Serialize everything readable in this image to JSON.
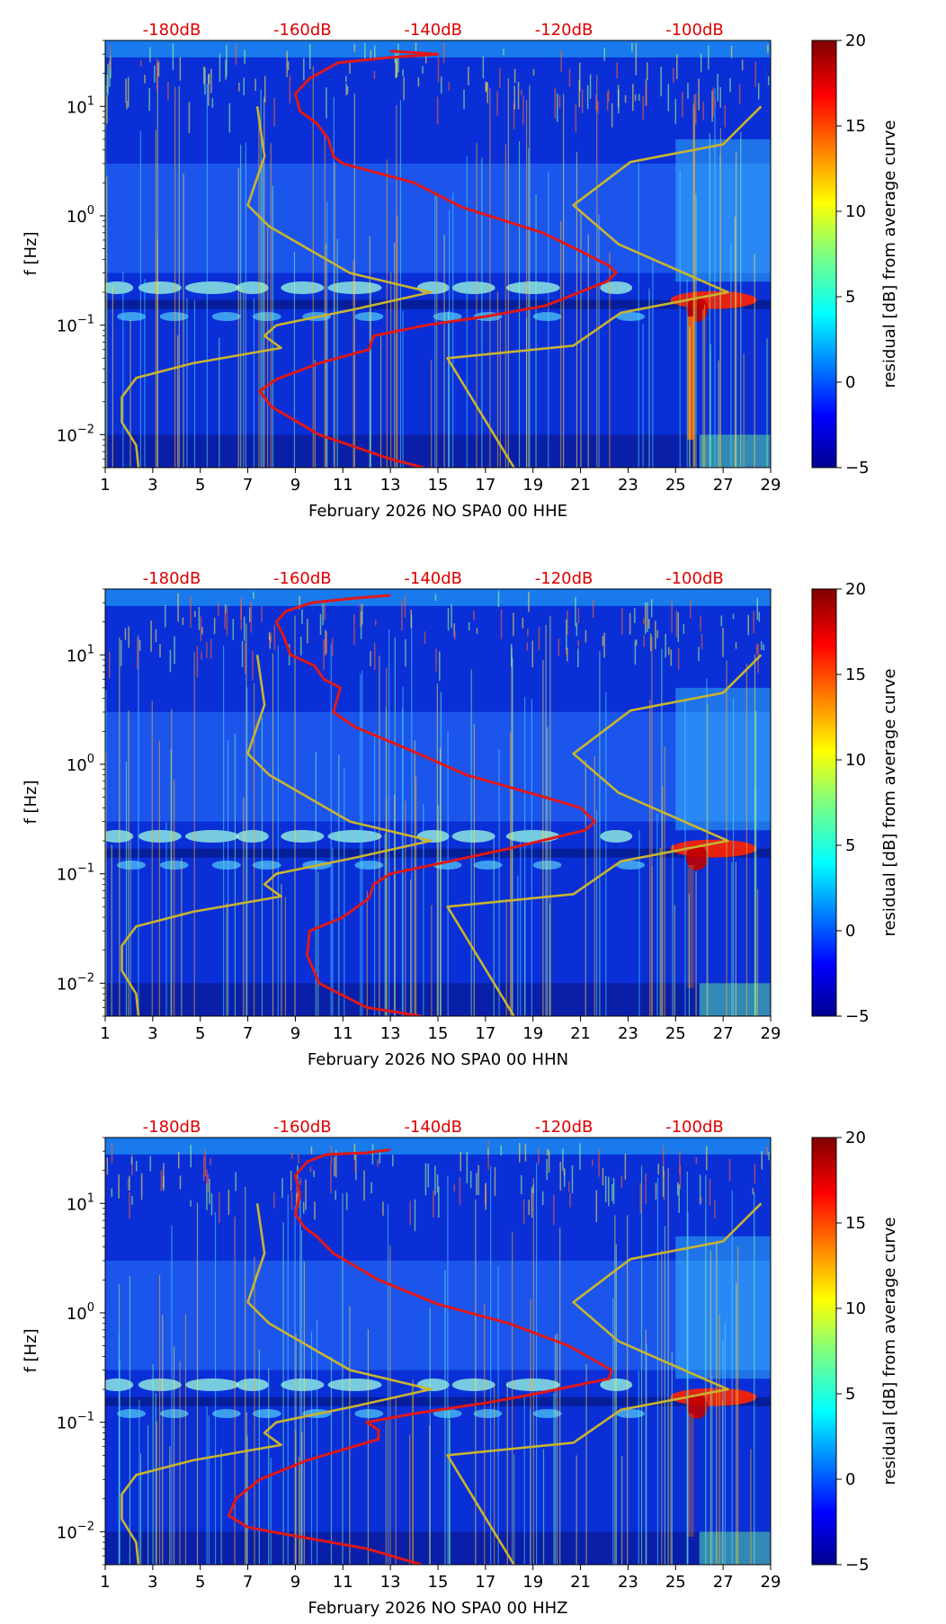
{
  "figure": {
    "colorbar": {
      "label": "residual [dB] from average curve",
      "range": [
        -5,
        20
      ],
      "tick_labels": [
        "20",
        "15",
        "10",
        "5",
        "0",
        "−5"
      ],
      "tick_values": [
        20,
        15,
        10,
        5,
        0,
        -5
      ]
    },
    "top_axis": {
      "labels": [
        "-180dB",
        "-160dB",
        "-140dB",
        "-120dB",
        "-100dB"
      ],
      "positions_day": [
        3.8,
        9.3,
        14.8,
        20.3,
        25.8
      ],
      "color": "#e00000"
    },
    "x_ticks": [
      "1",
      "3",
      "5",
      "7",
      "9",
      "11",
      "13",
      "15",
      "17",
      "19",
      "21",
      "23",
      "25",
      "27",
      "29"
    ],
    "ylabel": "f [Hz]",
    "y_ticks": [
      {
        "base": "10",
        "exp": "1",
        "value": 10
      },
      {
        "base": "10",
        "exp": "0",
        "value": 1
      },
      {
        "base": "10",
        "exp": "−1",
        "value": 0.1
      },
      {
        "base": "10",
        "exp": "−2",
        "value": 0.01
      }
    ],
    "colors": {
      "spectrogram_bg": "#0a2fd6",
      "noise_model": "#c8b430",
      "psd": "#e01818"
    }
  },
  "chart_data": [
    {
      "type": "heatmap",
      "title": "",
      "xlabel": "February 2026 NO SPA0 00 HHE",
      "ylabel": "f [Hz]",
      "xlim": [
        1,
        29
      ],
      "ylim": [
        0.005,
        40
      ],
      "yscale": "log",
      "series": [
        {
          "name": "noise model low (yellow)",
          "day": [
            2.4,
            2.3,
            1.7,
            1.7,
            2.3,
            4.7,
            8.4,
            7.7,
            8.2,
            11.5,
            14.7,
            11.3,
            7.9,
            7.0,
            7.7,
            7.4
          ],
          "freq": [
            0.005,
            0.008,
            0.013,
            0.022,
            0.033,
            0.045,
            0.062,
            0.08,
            0.1,
            0.14,
            0.2,
            0.3,
            0.8,
            1.25,
            3.5,
            10
          ]
        },
        {
          "name": "noise model high (yellow)",
          "day": [
            18.2,
            15.4,
            20.7,
            22.7,
            27.2,
            22.6,
            20.7,
            23.1,
            27.0,
            28.6
          ],
          "freq": [
            0.005,
            0.05,
            0.065,
            0.13,
            0.2,
            0.55,
            1.25,
            3.1,
            4.5,
            10
          ]
        },
        {
          "name": "median PSD (red)",
          "day": [
            14.4,
            13,
            10,
            8,
            7.5,
            8.2,
            10,
            12.1,
            12.3,
            14.5,
            17,
            19.5,
            22.1,
            22.5,
            22.2,
            20.8,
            19.4,
            16,
            14,
            11,
            10.6,
            10.4,
            9.9,
            9.2,
            9.0,
            9.6,
            10.8,
            13,
            15,
            13
          ],
          "freq": [
            0.005,
            0.006,
            0.01,
            0.018,
            0.025,
            0.032,
            0.045,
            0.06,
            0.08,
            0.1,
            0.12,
            0.15,
            0.25,
            0.3,
            0.35,
            0.5,
            0.7,
            1.2,
            2,
            3,
            3.5,
            5,
            7,
            9,
            13,
            18,
            25,
            28,
            30,
            32
          ]
        }
      ]
    },
    {
      "type": "heatmap",
      "title": "",
      "xlabel": "February 2026 NO SPA0 00 HHN",
      "ylabel": "f [Hz]",
      "xlim": [
        1,
        29
      ],
      "ylim": [
        0.005,
        40
      ],
      "yscale": "log",
      "series": [
        {
          "name": "noise model low (yellow)",
          "day": [
            2.4,
            2.3,
            1.7,
            1.7,
            2.3,
            4.7,
            8.4,
            7.7,
            8.2,
            11.5,
            14.7,
            11.3,
            7.9,
            7.0,
            7.7,
            7.4
          ],
          "freq": [
            0.005,
            0.008,
            0.013,
            0.022,
            0.033,
            0.045,
            0.062,
            0.08,
            0.1,
            0.14,
            0.2,
            0.3,
            0.8,
            1.25,
            3.5,
            10
          ]
        },
        {
          "name": "noise model high (yellow)",
          "day": [
            18.2,
            15.4,
            20.7,
            22.7,
            27.2,
            22.6,
            20.7,
            23.1,
            27.0,
            28.6
          ],
          "freq": [
            0.005,
            0.05,
            0.065,
            0.13,
            0.2,
            0.55,
            1.25,
            3.1,
            4.5,
            10
          ]
        },
        {
          "name": "median PSD (red)",
          "day": [
            14.3,
            12,
            10,
            9.5,
            9.6,
            11,
            12.1,
            12.3,
            13,
            15.5,
            18,
            21.2,
            21.6,
            21,
            19.5,
            16.2,
            14,
            11.5,
            10.6,
            10.9,
            10.2,
            9.8,
            8.8,
            8.5,
            8.2,
            8.6,
            9.7,
            11.5,
            13
          ],
          "freq": [
            0.005,
            0.006,
            0.01,
            0.018,
            0.03,
            0.04,
            0.06,
            0.08,
            0.1,
            0.13,
            0.17,
            0.25,
            0.3,
            0.4,
            0.5,
            0.8,
            1.3,
            2.2,
            3,
            5,
            6,
            8,
            10,
            15,
            20,
            25,
            30,
            33,
            35
          ]
        }
      ]
    },
    {
      "type": "heatmap",
      "title": "",
      "xlabel": "February 2026 NO SPA0 00 HHZ",
      "ylabel": "f [Hz]",
      "xlim": [
        1,
        29
      ],
      "ylim": [
        0.005,
        40
      ],
      "yscale": "log",
      "series": [
        {
          "name": "noise model low (yellow)",
          "day": [
            2.4,
            2.3,
            1.7,
            1.7,
            2.3,
            4.7,
            8.4,
            7.7,
            8.2,
            11.5,
            14.7,
            11.3,
            7.9,
            7.0,
            7.7,
            7.4
          ],
          "freq": [
            0.005,
            0.008,
            0.013,
            0.022,
            0.033,
            0.045,
            0.062,
            0.08,
            0.1,
            0.14,
            0.2,
            0.3,
            0.8,
            1.25,
            3.5,
            10
          ]
        },
        {
          "name": "noise model high (yellow)",
          "day": [
            18.2,
            15.4,
            20.7,
            22.7,
            27.2,
            22.6,
            20.7,
            23.1,
            27.0,
            28.6
          ],
          "freq": [
            0.005,
            0.05,
            0.065,
            0.13,
            0.2,
            0.55,
            1.25,
            3.1,
            4.5,
            10
          ]
        },
        {
          "name": "median PSD (red)",
          "day": [
            14.3,
            12,
            8,
            7,
            6.2,
            6.5,
            7.5,
            9.5,
            12.5,
            12.5,
            12,
            14,
            17,
            19,
            22.2,
            22.3,
            20.5,
            18,
            15,
            12.5,
            10.6,
            9.9,
            9.4,
            9.0,
            9.2,
            9.0,
            9.5,
            10.3,
            12,
            13
          ],
          "freq": [
            0.005,
            0.007,
            0.01,
            0.011,
            0.014,
            0.02,
            0.03,
            0.045,
            0.07,
            0.085,
            0.1,
            0.12,
            0.15,
            0.18,
            0.25,
            0.3,
            0.5,
            0.8,
            1.2,
            2,
            3.5,
            5,
            6,
            8,
            12,
            18,
            24,
            28,
            29,
            31
          ]
        }
      ]
    }
  ]
}
